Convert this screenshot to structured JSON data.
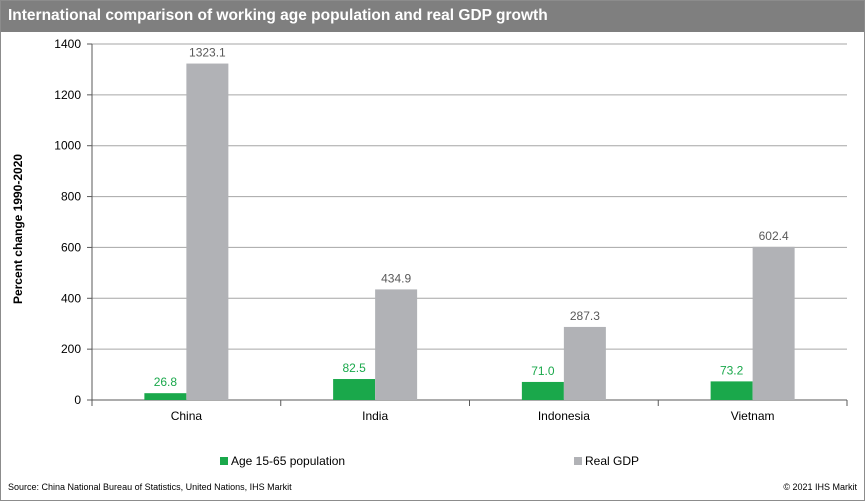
{
  "header": {
    "title": "International comparison of working age population and real GDP growth"
  },
  "colors": {
    "population": "#1aa84b",
    "gdp": "#b1b2b6",
    "header_bg": "#7f7f7f",
    "axis": "#595959"
  },
  "chart_data": {
    "type": "bar",
    "title": "International comparison of working age population and real GDP growth",
    "xlabel": "",
    "ylabel": "Percent change 1990-2020",
    "ylim": [
      0,
      1400
    ],
    "yticks": [
      0,
      200,
      400,
      600,
      800,
      1000,
      1200,
      1400
    ],
    "categories": [
      "China",
      "India",
      "Indonesia",
      "Vietnam"
    ],
    "series": [
      {
        "name": "Age 15-65 population",
        "values": [
          26.8,
          82.5,
          71.0,
          73.2
        ],
        "labels": [
          "26.8",
          "82.5",
          "71.0",
          "73.2"
        ]
      },
      {
        "name": "Real GDP",
        "values": [
          1323.1,
          434.9,
          287.3,
          602.4
        ],
        "labels": [
          "1323.1",
          "434.9",
          "287.3",
          "602.4"
        ]
      }
    ],
    "legend_position": "bottom",
    "grid": true
  },
  "footer": {
    "source": "Source: China National Bureau of Statistics, United Nations, IHS Markit",
    "copyright": "© 2021 IHS Markit"
  }
}
